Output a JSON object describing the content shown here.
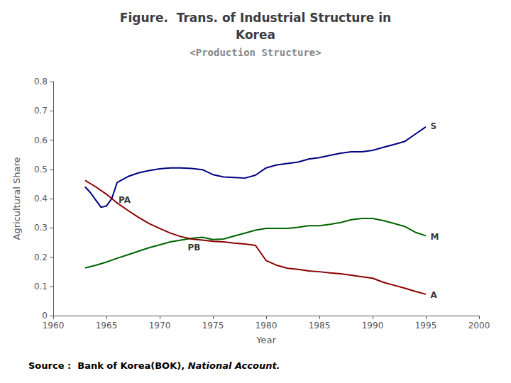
{
  "chart_data": {
    "type": "line",
    "title": "Figure.  Trans. of Industrial Structure in\nKorea",
    "subtitle": "<Production Structure>",
    "xlabel": "Year",
    "ylabel": "Agricultural Share",
    "source": [
      "Source :  Bank of Korea(BOK), ",
      "National Account."
    ],
    "xlim": [
      1960,
      2000
    ],
    "ylim": [
      0,
      0.8
    ],
    "xticks": [
      1960,
      1965,
      1970,
      1975,
      1980,
      1985,
      1990,
      1995,
      2000
    ],
    "yticks": [
      0,
      0.1,
      0.2,
      0.3,
      0.4,
      0.5,
      0.6,
      0.7,
      0.8
    ],
    "grid": false,
    "series": [
      {
        "name": "S",
        "color": "#000080",
        "x": [
          1963,
          1963.5,
          1964,
          1964.5,
          1965,
          1965.5,
          1966,
          1967,
          1968,
          1969,
          1970,
          1971,
          1972,
          1973,
          1974,
          1975,
          1976,
          1977,
          1978,
          1979,
          1980,
          1981,
          1982,
          1983,
          1984,
          1985,
          1986,
          1987,
          1988,
          1989,
          1990,
          1991,
          1992,
          1993,
          1994,
          1995
        ],
        "values": [
          0.44,
          0.42,
          0.395,
          0.37,
          0.375,
          0.4,
          0.455,
          0.475,
          0.488,
          0.496,
          0.502,
          0.505,
          0.505,
          0.503,
          0.499,
          0.482,
          0.474,
          0.472,
          0.47,
          0.48,
          0.505,
          0.515,
          0.52,
          0.525,
          0.535,
          0.54,
          0.548,
          0.555,
          0.56,
          0.56,
          0.565,
          0.575,
          0.585,
          0.595,
          0.62,
          0.645
        ]
      },
      {
        "name": "M",
        "color": "#006400",
        "x": [
          1963,
          1964,
          1965,
          1966,
          1967,
          1968,
          1969,
          1970,
          1971,
          1972,
          1973,
          1974,
          1975,
          1976,
          1977,
          1978,
          1979,
          1980,
          1981,
          1982,
          1983,
          1984,
          1985,
          1986,
          1987,
          1988,
          1989,
          1990,
          1991,
          1992,
          1993,
          1994,
          1995
        ],
        "values": [
          0.163,
          0.172,
          0.183,
          0.196,
          0.208,
          0.22,
          0.232,
          0.242,
          0.252,
          0.258,
          0.264,
          0.268,
          0.26,
          0.262,
          0.272,
          0.282,
          0.292,
          0.298,
          0.298,
          0.298,
          0.302,
          0.307,
          0.307,
          0.312,
          0.318,
          0.328,
          0.332,
          0.332,
          0.325,
          0.315,
          0.305,
          0.285,
          0.273
        ]
      },
      {
        "name": "A",
        "color": "#8B0000",
        "x": [
          1963,
          1964,
          1965,
          1966,
          1967,
          1968,
          1969,
          1970,
          1971,
          1972,
          1973,
          1974,
          1975,
          1976,
          1977,
          1978,
          1979,
          1980,
          1981,
          1982,
          1983,
          1984,
          1985,
          1986,
          1987,
          1988,
          1989,
          1990,
          1991,
          1992,
          1993,
          1994,
          1995
        ],
        "values": [
          0.462,
          0.44,
          0.415,
          0.385,
          0.36,
          0.336,
          0.315,
          0.298,
          0.282,
          0.27,
          0.262,
          0.258,
          0.254,
          0.252,
          0.248,
          0.245,
          0.24,
          0.188,
          0.172,
          0.162,
          0.158,
          0.153,
          0.15,
          0.146,
          0.143,
          0.138,
          0.133,
          0.128,
          0.114,
          0.104,
          0.094,
          0.083,
          0.073
        ]
      }
    ],
    "annotations": [
      {
        "text": "S",
        "x": 1995.3,
        "y": 0.648
      },
      {
        "text": "M",
        "x": 1995.3,
        "y": 0.27
      },
      {
        "text": "A",
        "x": 1995.3,
        "y": 0.07
      },
      {
        "text": "PA",
        "x": 1966.0,
        "y": 0.395
      },
      {
        "text": "PB",
        "x": 1972.5,
        "y": 0.232
      }
    ]
  }
}
